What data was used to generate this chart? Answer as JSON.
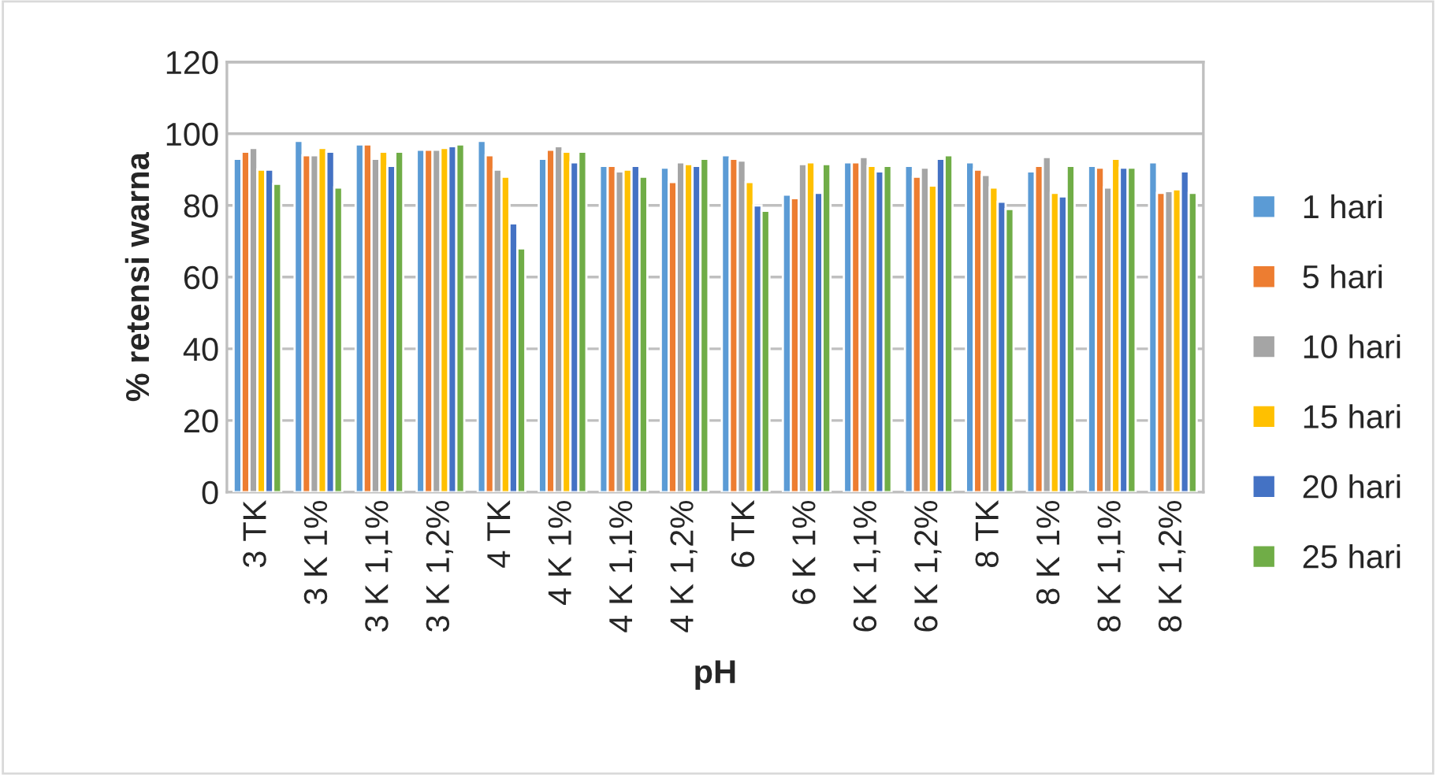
{
  "chart_data": {
    "type": "bar",
    "xlabel": "pH",
    "ylabel": "% retensi warna",
    "categories": [
      "3 TK",
      "3 K 1%",
      "3 K 1,1%",
      "3 K 1,2%",
      "4 TK",
      "4 K 1%",
      "4 K 1,1%",
      "4 K 1,2%",
      "6 TK",
      "6 K 1%",
      "6 K 1,1%",
      "6 K 1,2%",
      "8 TK",
      "8 K 1%",
      "8 K 1,1%",
      "8 K 1,2%"
    ],
    "series": [
      {
        "name": "1 hari",
        "color": "#5b9bd5",
        "values": [
          93,
          98,
          97,
          95.5,
          98,
          93,
          91,
          90.5,
          94,
          83,
          92,
          91,
          92,
          89.5,
          91,
          92
        ]
      },
      {
        "name": "5 hari",
        "color": "#ed7d31",
        "values": [
          95,
          94,
          97,
          95.5,
          94,
          95.5,
          91,
          86.5,
          93,
          82,
          92,
          88,
          90,
          91,
          90.5,
          83.5
        ]
      },
      {
        "name": "10 hari",
        "color": "#a5a5a5",
        "values": [
          96,
          94,
          93,
          95.5,
          90,
          96.5,
          89.5,
          92,
          92.5,
          91.5,
          93.5,
          90.5,
          88.5,
          93.5,
          85,
          84
        ]
      },
      {
        "name": "15 hari",
        "color": "#ffc000",
        "values": [
          90,
          96,
          95,
          96,
          88,
          95,
          90,
          91.5,
          86.5,
          92,
          91,
          85.5,
          85,
          83.5,
          93,
          84.5
        ]
      },
      {
        "name": "20 hari",
        "color": "#4472c4",
        "values": [
          90,
          95,
          91,
          96.5,
          75,
          92,
          91,
          91,
          80,
          83.5,
          89.5,
          93,
          81,
          82.5,
          90.5,
          89.5
        ]
      },
      {
        "name": "25 hari",
        "color": "#70ad47",
        "values": [
          86,
          85,
          95,
          97,
          68,
          95,
          88,
          93,
          78.5,
          91.5,
          91,
          94,
          79,
          91,
          90.5,
          83.5
        ]
      }
    ],
    "ylim": [
      0,
      120
    ],
    "yticks": [
      0,
      20,
      40,
      60,
      80,
      100,
      120
    ],
    "grid": "y",
    "legend": "right"
  }
}
